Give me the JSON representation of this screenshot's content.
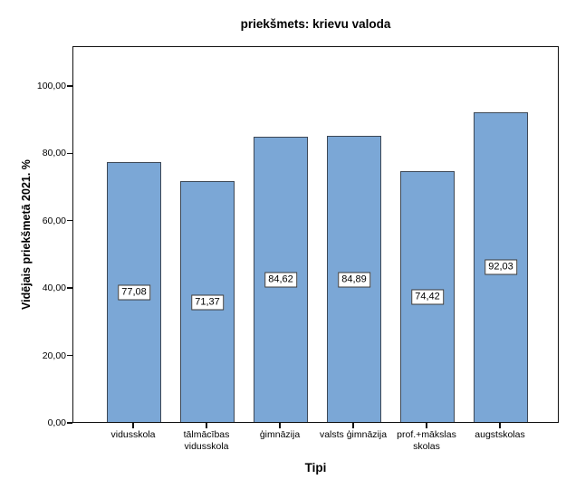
{
  "chart_data": {
    "type": "bar",
    "title": "priekšmets: krievu valoda",
    "xlabel": "Tipi",
    "ylabel": "Vidējais priekšmetā 2021. %",
    "categories": [
      "vidusskola",
      "tālmācības\nvidusskola",
      "ģimnāzija",
      "valsts ģimnāzija",
      "prof.+mākslas\nskolas",
      "augstskolas"
    ],
    "values": [
      77.08,
      71.37,
      84.62,
      84.89,
      74.42,
      92.03
    ],
    "value_labels": [
      "77,08",
      "71,37",
      "84,62",
      "84,89",
      "74,42",
      "92,03"
    ],
    "y_ticks": [
      {
        "value": 0,
        "label": "0,00"
      },
      {
        "value": 20,
        "label": "20,00"
      },
      {
        "value": 40,
        "label": "40,00"
      },
      {
        "value": 60,
        "label": "60,00"
      },
      {
        "value": 80,
        "label": "80,00"
      },
      {
        "value": 100,
        "label": "100,00"
      }
    ],
    "ylim": [
      0,
      111.8
    ],
    "grid": false,
    "legend": null,
    "bar_color": "#7BA7D6",
    "bar_border_color": "#3D4856",
    "axis_color": "#111111"
  }
}
